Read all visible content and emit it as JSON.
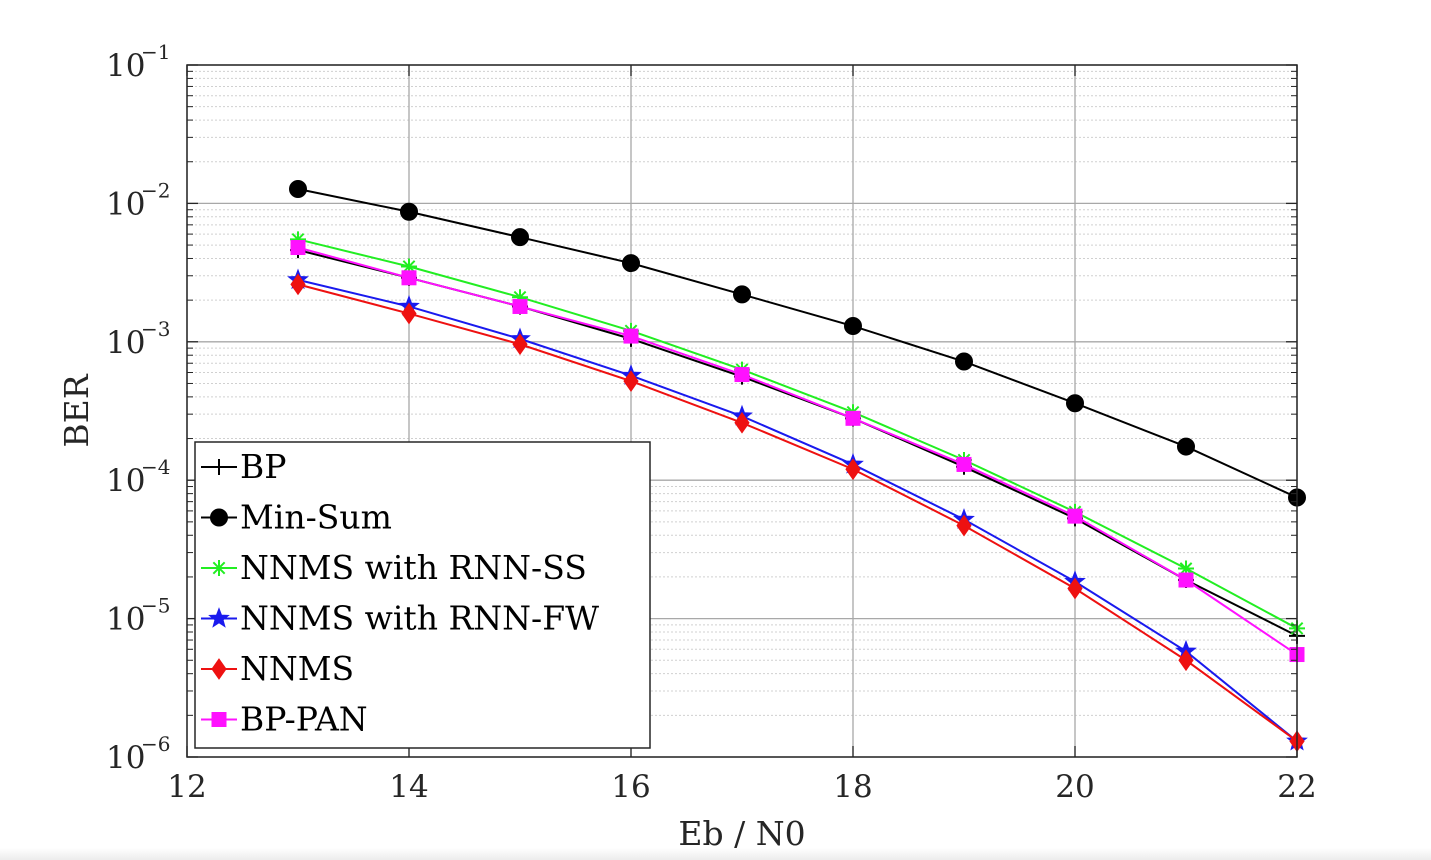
{
  "chart_data": {
    "type": "line",
    "xlabel": "Eb / N0",
    "ylabel": "BER",
    "xlim": [
      12,
      22
    ],
    "ylim": [
      1e-06,
      0.1
    ],
    "yscale": "log",
    "grid": true,
    "legend_position": "bottom-left",
    "x_ticks": [
      "12",
      "14",
      "16",
      "18",
      "20",
      "22"
    ],
    "y_ticks": [
      {
        "base": "10",
        "exp": "−1",
        "value": 0.1
      },
      {
        "base": "10",
        "exp": "−2",
        "value": 0.01
      },
      {
        "base": "10",
        "exp": "−3",
        "value": 0.001
      },
      {
        "base": "10",
        "exp": "−4",
        "value": 0.0001
      },
      {
        "base": "10",
        "exp": "−5",
        "value": 1e-05
      },
      {
        "base": "10",
        "exp": "−6",
        "value": 1e-06
      }
    ],
    "x": [
      13,
      14,
      15,
      16,
      17,
      18,
      19,
      20,
      21,
      22
    ],
    "series": [
      {
        "name": "BP",
        "color": "#000000",
        "marker": "plus",
        "values": [
          0.0046,
          0.0029,
          0.0018,
          0.00105,
          0.00056,
          0.00028,
          0.000125,
          5.3e-05,
          1.9e-05,
          7.5e-06
        ]
      },
      {
        "name": "Min-Sum",
        "color": "#000000",
        "marker": "circle",
        "values": [
          0.0127,
          0.0087,
          0.0057,
          0.0037,
          0.0022,
          0.0013,
          0.00072,
          0.00036,
          0.000175,
          7.5e-05
        ]
      },
      {
        "name": "NNMS with RNN-SS",
        "color": "#22ee22",
        "marker": "asterisk",
        "values": [
          0.0055,
          0.0035,
          0.0021,
          0.0012,
          0.00063,
          0.00031,
          0.00014,
          5.9e-05,
          2.3e-05,
          8.5e-06
        ]
      },
      {
        "name": "NNMS with RNN-FW",
        "color": "#1a1aee",
        "marker": "star",
        "values": [
          0.0028,
          0.0018,
          0.00105,
          0.00057,
          0.00029,
          0.00013,
          5.2e-05,
          1.85e-05,
          5.8e-06,
          1.3e-06
        ]
      },
      {
        "name": "NNMS",
        "color": "#ee1111",
        "marker": "diamond",
        "values": [
          0.0026,
          0.0016,
          0.00096,
          0.00052,
          0.00026,
          0.00012,
          4.7e-05,
          1.65e-05,
          5e-06,
          1.3e-06
        ]
      },
      {
        "name": "BP-PAN",
        "color": "#ff11ff",
        "marker": "square",
        "values": [
          0.0048,
          0.0029,
          0.0018,
          0.0011,
          0.00058,
          0.00028,
          0.00013,
          5.5e-05,
          1.9e-05,
          5.5e-06
        ]
      }
    ]
  }
}
